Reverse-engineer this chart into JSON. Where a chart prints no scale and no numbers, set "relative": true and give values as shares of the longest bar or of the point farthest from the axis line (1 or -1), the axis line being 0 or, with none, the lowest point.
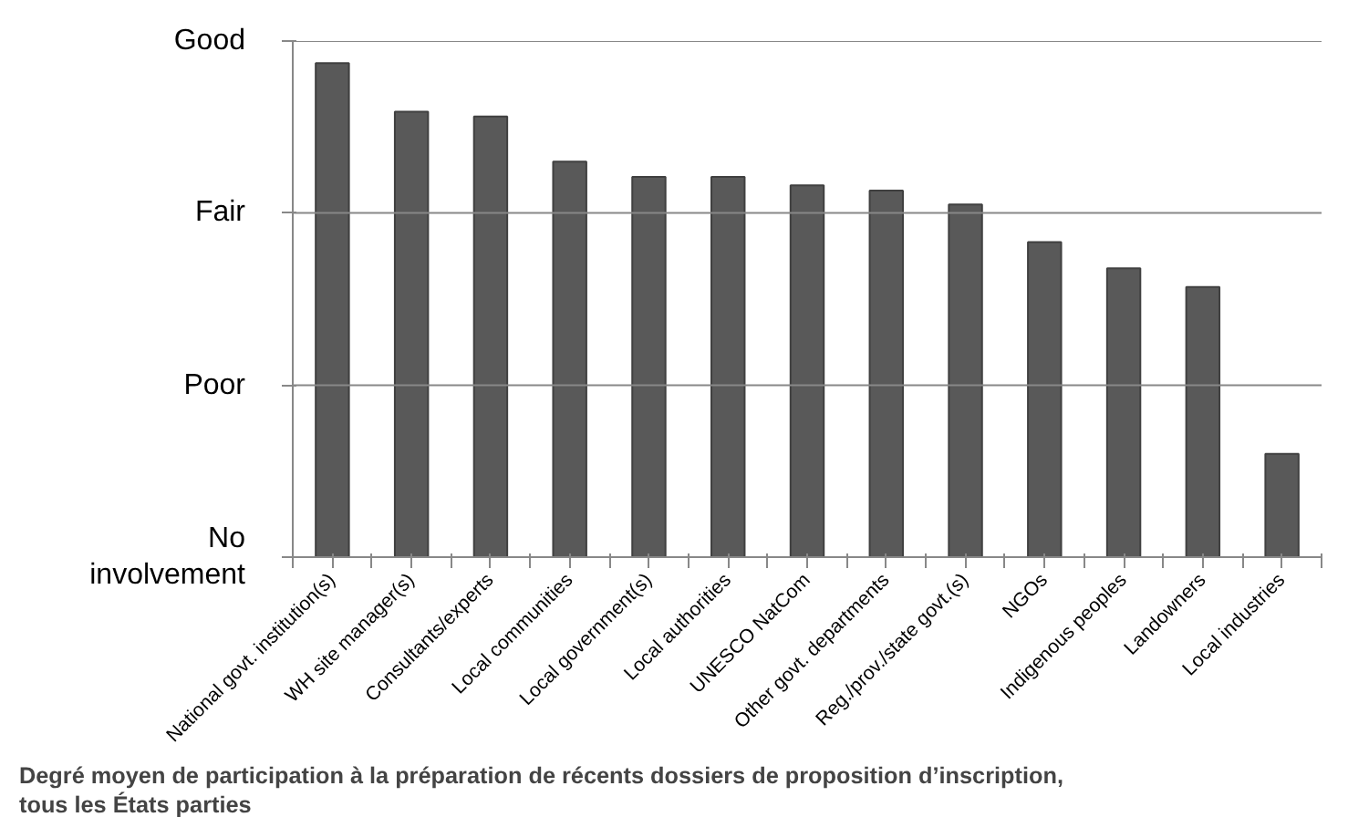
{
  "chart_data": {
    "type": "bar",
    "title": "Degré moyen de participation à la préparation de récents dossiers de proposition d’inscription, tous les États parties",
    "categories": [
      "National govt. institution(s)",
      "WH site manager(s)",
      "Consultants/experts",
      "Local communities",
      "Local government(s)",
      "Local authorities",
      "UNESCO NatCom",
      "Other govt. departments",
      "Reg./prov./state govt.(s)",
      "NGOs",
      "Indigenous peoples",
      "Landowners",
      "Local industries"
    ],
    "values": [
      1,
      0.902,
      0.892,
      0.801,
      0.77,
      0.77,
      0.753,
      0.742,
      0.714,
      0.638,
      0.585,
      0.547,
      0.209
    ],
    "relative": true,
    "color": "#595959",
    "ref_lines": [
      {
        "axis": "y",
        "value": 0,
        "label": "No involvement",
        "color": "#888888"
      },
      {
        "axis": "y",
        "value": 0.348,
        "label": "Poor",
        "color": "#888888"
      },
      {
        "axis": "y",
        "value": 0.697,
        "label": "Fair",
        "color": "#888888"
      },
      {
        "axis": "y",
        "value": 1.045,
        "label": "Good",
        "color": "#888888"
      }
    ]
  }
}
